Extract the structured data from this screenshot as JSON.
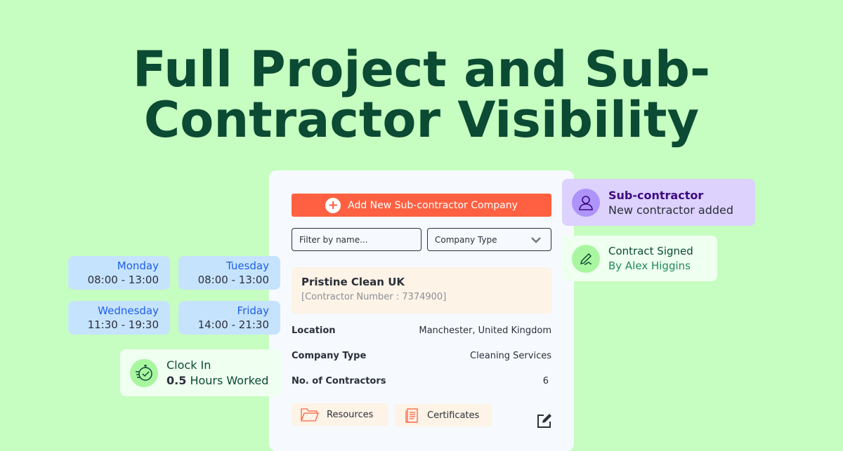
{
  "headline": {
    "line1": "Full Project and Sub-",
    "line2": "Contractor Visibility"
  },
  "panel": {
    "add_button": "Add New Sub-contractor Company",
    "filter_placeholder": "Filter by name...",
    "company_type_select": "Company Type",
    "company": {
      "name": "Pristine Clean UK",
      "number": "[Contractor Number : 7374900]"
    },
    "details": [
      {
        "label": "Location",
        "value": "Manchester, United Kingdom"
      },
      {
        "label": "Company Type",
        "value": "Cleaning Services"
      },
      {
        "label": "No. of Contractors",
        "value": "6"
      }
    ],
    "resources": "Resources",
    "certificates": "Certificates"
  },
  "schedule": [
    {
      "day": "Monday",
      "time": "08:00 - 13:00"
    },
    {
      "day": "Tuesday",
      "time": "08:00 - 13:00"
    },
    {
      "day": "Wednesday",
      "time": "11:30 - 19:30"
    },
    {
      "day": "Friday",
      "time": "14:00 - 21:30"
    }
  ],
  "clock_in": {
    "title": "Clock In",
    "hours": "0.5",
    "hours_label": "Hours Worked"
  },
  "notifications": {
    "sub": {
      "title": "Sub-contractor",
      "text": "New contractor added"
    },
    "contract": {
      "title": "Contract Signed",
      "text": "By Alex Higgins"
    }
  },
  "colors": {
    "background": "#c6fdc0",
    "accent": "#ff6041",
    "headline": "#0b4a33",
    "day_text": "#1e5ee6"
  }
}
